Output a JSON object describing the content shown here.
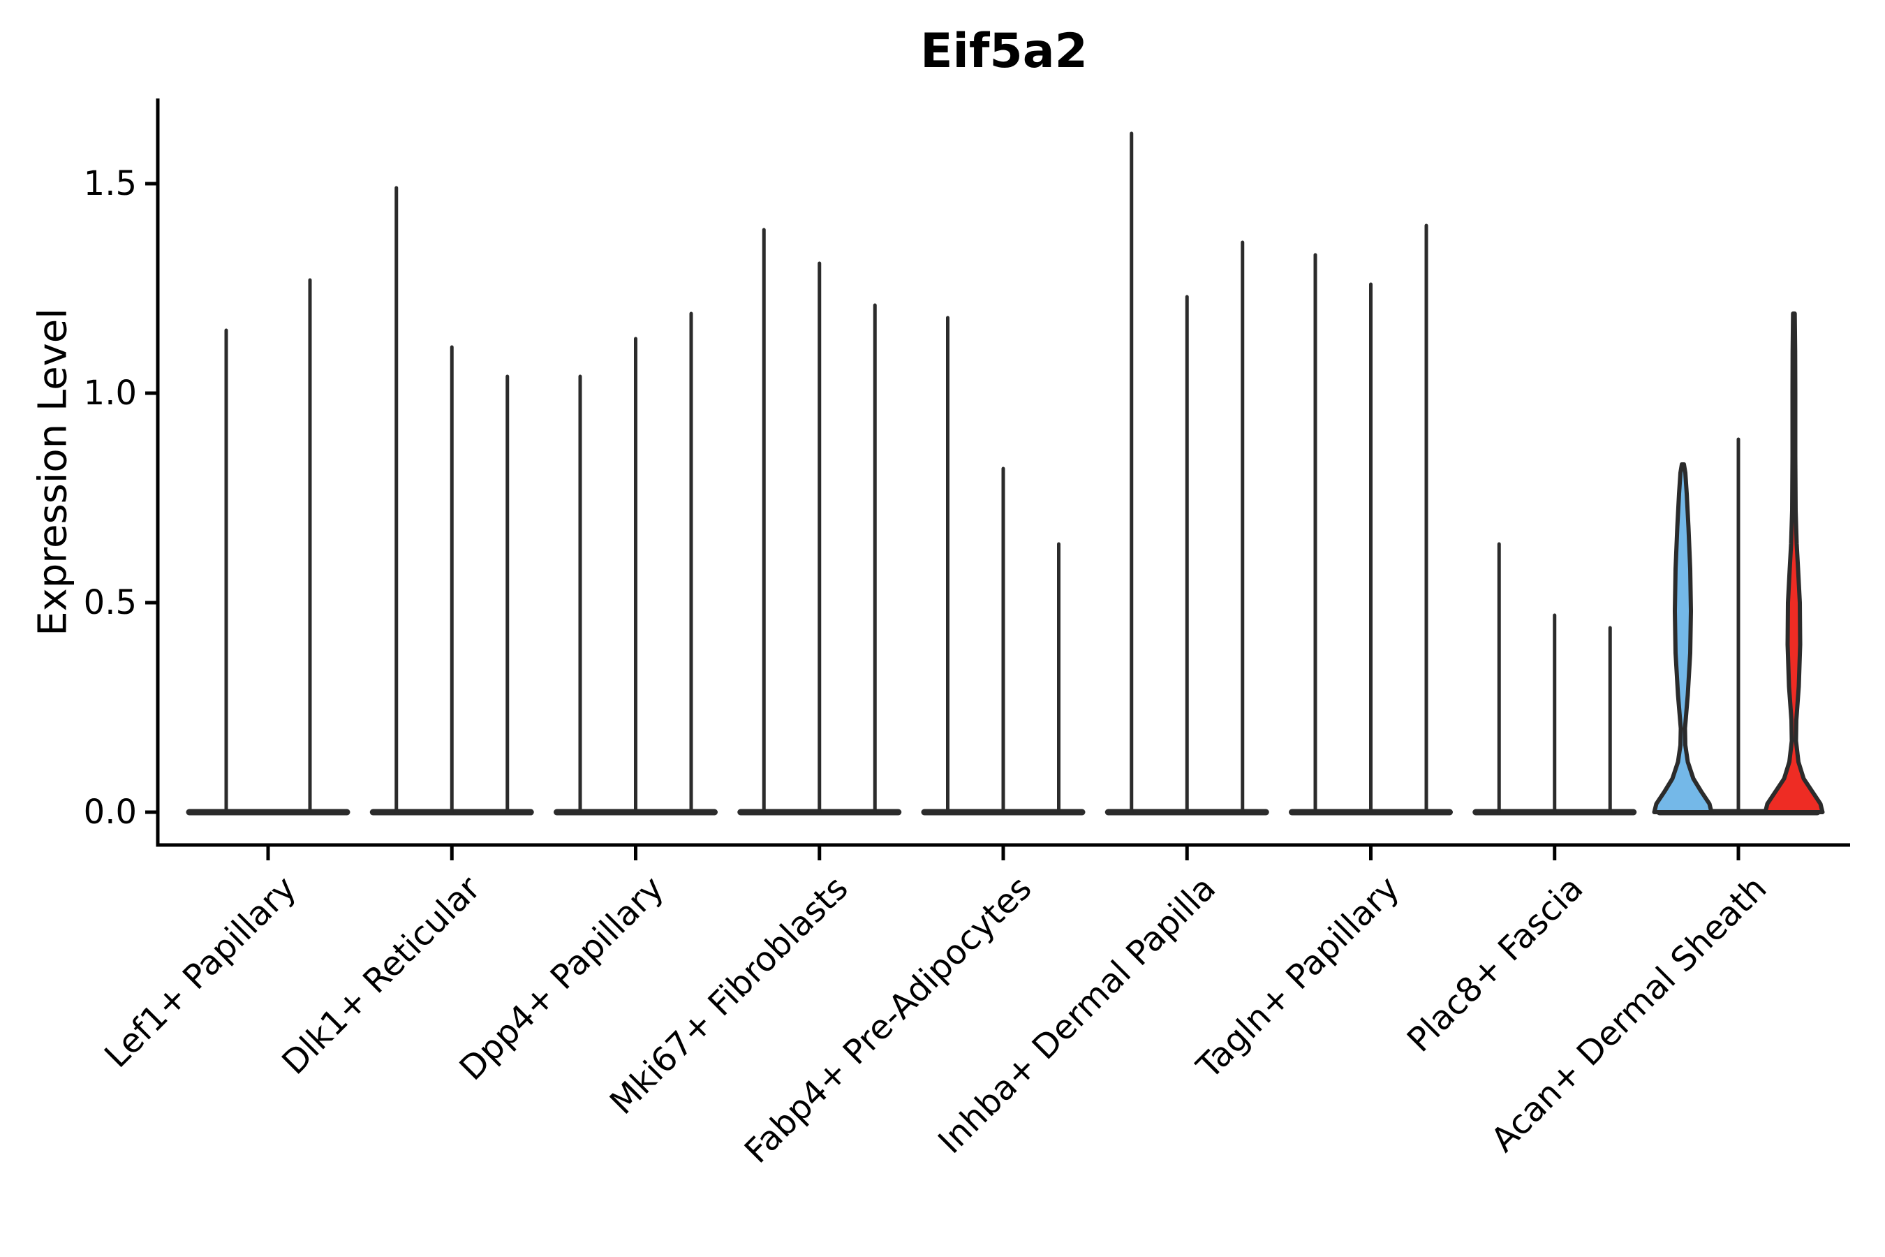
{
  "figure": {
    "title": "Eif5a2"
  },
  "y_axis": {
    "label": "Expression Level",
    "tick_labels": [
      "0.0",
      "0.5",
      "1.0",
      "1.5"
    ]
  },
  "chart_data": {
    "type": "violin",
    "title": "Eif5a2",
    "xlabel": "",
    "ylabel": "Expression Level",
    "ylim": [
      0,
      1.7
    ],
    "yticks": [
      0.0,
      0.5,
      1.0,
      1.5
    ],
    "grid": false,
    "legend": "none",
    "categories": [
      "Lef1+ Papillary",
      "Dlk1+ Reticular",
      "Dpp4+ Papillary",
      "Mki67+ Fibroblasts",
      "Fabp4+ Pre-Adipocytes",
      "Inhba+ Dermal Papilla",
      "Tagln+ Papillary",
      "Plac8+ Fascia",
      "Acan+ Dermal Sheath"
    ],
    "description": "Violin plot; nearly all density mass sits at expression 0 (flat wide bases) with thin spikes up to each violin's maximum expression. Only the first and third violins of Acan+ Dermal Sheath are color-filled.",
    "groups": [
      {
        "category": "Lef1+ Papillary",
        "violins": [
          {
            "max_expression": 1.15,
            "style": "thin-line"
          },
          {
            "max_expression": 1.27,
            "style": "thin-line"
          }
        ]
      },
      {
        "category": "Dlk1+ Reticular",
        "violins": [
          {
            "max_expression": 1.49,
            "style": "thin-line"
          },
          {
            "max_expression": 1.11,
            "style": "thin-line"
          },
          {
            "max_expression": 1.04,
            "style": "thin-line"
          }
        ]
      },
      {
        "category": "Dpp4+ Papillary",
        "violins": [
          {
            "max_expression": 1.04,
            "style": "thin-line"
          },
          {
            "max_expression": 1.13,
            "style": "thin-line"
          },
          {
            "max_expression": 1.19,
            "style": "thin-line"
          }
        ]
      },
      {
        "category": "Mki67+ Fibroblasts",
        "violins": [
          {
            "max_expression": 1.39,
            "style": "thin-line"
          },
          {
            "max_expression": 1.31,
            "style": "thin-line"
          },
          {
            "max_expression": 1.21,
            "style": "thin-line"
          }
        ]
      },
      {
        "category": "Fabp4+ Pre-Adipocytes",
        "violins": [
          {
            "max_expression": 1.18,
            "style": "thin-line"
          },
          {
            "max_expression": 0.82,
            "style": "thin-line"
          },
          {
            "max_expression": 0.64,
            "style": "thin-line"
          }
        ]
      },
      {
        "category": "Inhba+ Dermal Papilla",
        "violins": [
          {
            "max_expression": 1.62,
            "style": "thin-line"
          },
          {
            "max_expression": 1.23,
            "style": "thin-line"
          },
          {
            "max_expression": 1.36,
            "style": "thin-line"
          }
        ]
      },
      {
        "category": "Tagln+ Papillary",
        "violins": [
          {
            "max_expression": 1.33,
            "style": "thin-line"
          },
          {
            "max_expression": 1.26,
            "style": "thin-line"
          },
          {
            "max_expression": 1.4,
            "style": "thin-line"
          }
        ]
      },
      {
        "category": "Plac8+ Fascia",
        "violins": [
          {
            "max_expression": 0.64,
            "style": "thin-line"
          },
          {
            "max_expression": 0.47,
            "style": "thin-line"
          },
          {
            "max_expression": 0.44,
            "style": "thin-line"
          }
        ]
      },
      {
        "category": "Acan+ Dermal Sheath",
        "violins": [
          {
            "max_expression": 0.83,
            "style": "filled-violin",
            "fill": "#74B8E8",
            "profile": [
              [
                0,
                41
              ],
              [
                0.02,
                38
              ],
              [
                0.05,
                26
              ],
              [
                0.08,
                15
              ],
              [
                0.12,
                7
              ],
              [
                0.16,
                3.5
              ],
              [
                0.2,
                3
              ],
              [
                0.28,
                7
              ],
              [
                0.38,
                10.5
              ],
              [
                0.48,
                11.5
              ],
              [
                0.58,
                10.5
              ],
              [
                0.68,
                8
              ],
              [
                0.76,
                5.5
              ],
              [
                0.81,
                3.5
              ],
              [
                0.83,
                1.5
              ]
            ]
          },
          {
            "max_expression": 0.89,
            "style": "thin-line"
          },
          {
            "max_expression": 1.19,
            "style": "filled-violin",
            "fill": "#EE2C24",
            "profile": [
              [
                0,
                41
              ],
              [
                0.02,
                38
              ],
              [
                0.05,
                26
              ],
              [
                0.08,
                14
              ],
              [
                0.12,
                6.5
              ],
              [
                0.17,
                3
              ],
              [
                0.22,
                3.5
              ],
              [
                0.3,
                7
              ],
              [
                0.4,
                9
              ],
              [
                0.5,
                8.5
              ],
              [
                0.58,
                6
              ],
              [
                0.64,
                4
              ],
              [
                0.72,
                2.5
              ],
              [
                0.85,
                2
              ],
              [
                1.0,
                2
              ],
              [
                1.1,
                1.8
              ],
              [
                1.19,
                1.2
              ]
            ]
          }
        ]
      }
    ],
    "colors": {
      "outline": "#2B2B2B",
      "axis": "#000000",
      "highlight_blue": "#74B8E8",
      "highlight_red": "#EE2C24",
      "background": "#FFFFFF"
    }
  }
}
